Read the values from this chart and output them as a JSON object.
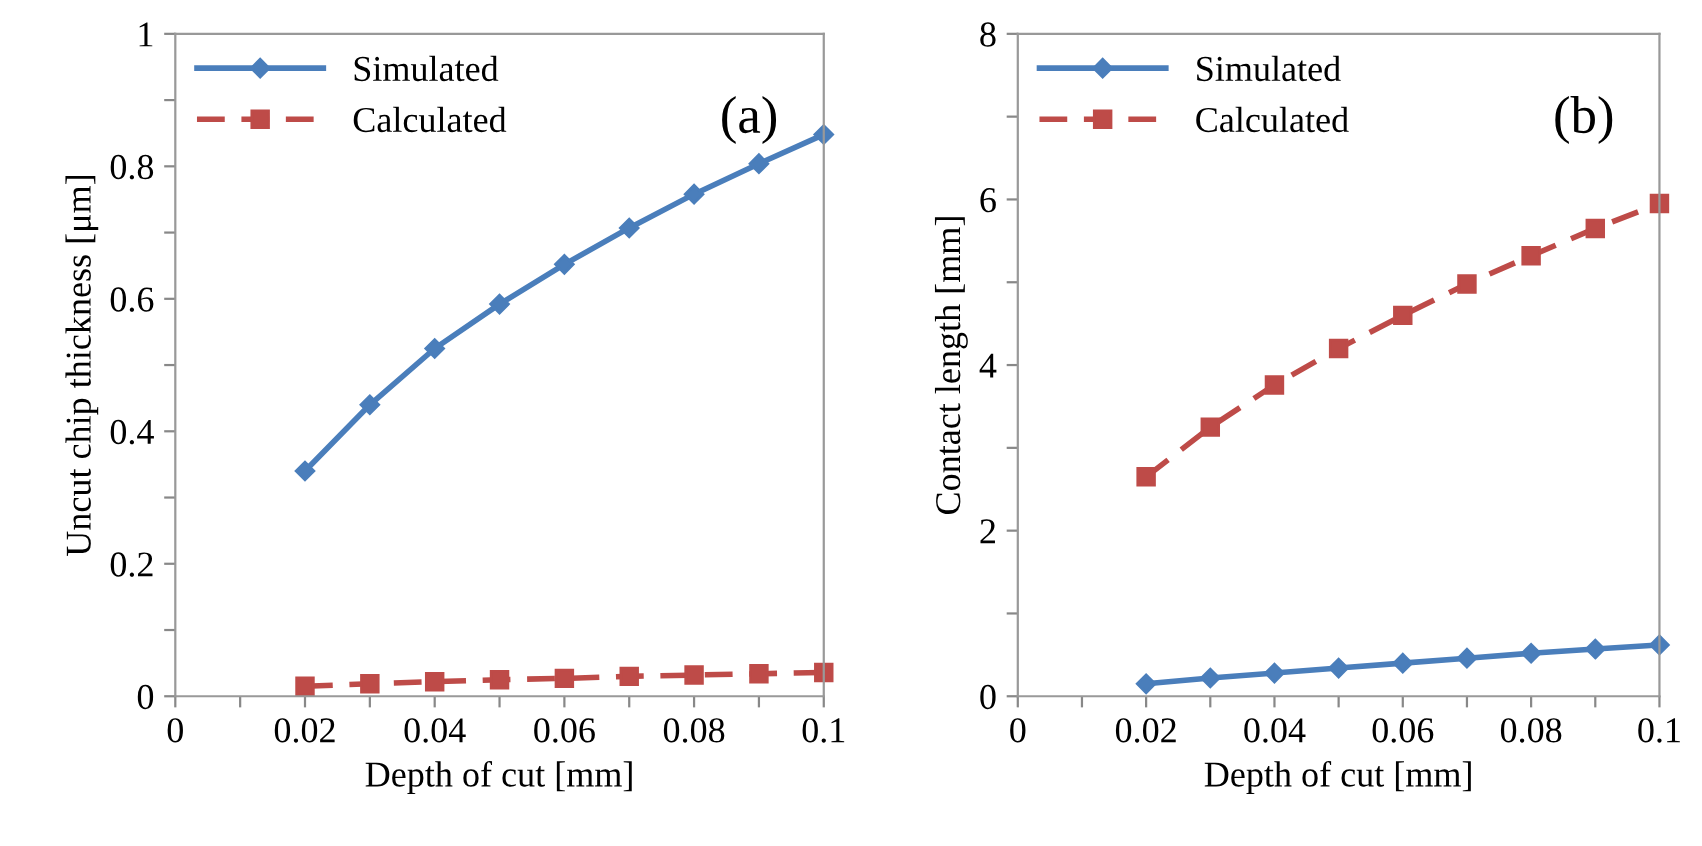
{
  "chart_data": [
    {
      "type": "line",
      "xlabel": "Depth of cut [mm]",
      "ylabel": "Uncut chip thickness [μm]",
      "annotations": [
        "(a)"
      ],
      "x": [
        0.02,
        0.03,
        0.04,
        0.05,
        0.06,
        0.07,
        0.08,
        0.09,
        0.1
      ],
      "series": [
        {
          "name": "Simulated",
          "color": "#4a7ebb",
          "marker": "diamond",
          "line_style": "solid",
          "values": [
            0.34,
            0.44,
            0.525,
            0.592,
            0.652,
            0.707,
            0.758,
            0.804,
            0.848
          ]
        },
        {
          "name": "Calculated",
          "color": "#be4b48",
          "marker": "square",
          "line_style": "dashed",
          "values": [
            0.015,
            0.019,
            0.022,
            0.025,
            0.027,
            0.03,
            0.032,
            0.034,
            0.036
          ]
        }
      ],
      "xlim": [
        0,
        0.1
      ],
      "ylim": [
        0,
        1
      ],
      "xticks": [
        0,
        {
          "value": 0.01,
          "label": null
        },
        0.02,
        {
          "value": 0.03,
          "label": null
        },
        0.04,
        {
          "value": 0.05,
          "label": null
        },
        0.06,
        {
          "value": 0.07,
          "label": null
        },
        0.08,
        {
          "value": 0.09,
          "label": null
        },
        0.1
      ],
      "yticks": [
        0,
        {
          "value": 0.1,
          "label": null
        },
        0.2,
        {
          "value": 0.3,
          "label": null
        },
        0.4,
        {
          "value": 0.5,
          "label": null
        },
        0.6,
        {
          "value": 0.7,
          "label": null
        },
        0.8,
        {
          "value": 0.9,
          "label": null
        },
        1
      ],
      "grid": false,
      "legend": "top left"
    },
    {
      "type": "line",
      "xlabel": "Depth of cut [mm]",
      "ylabel": "Contact length [mm]",
      "annotations": [
        "(b)"
      ],
      "x": [
        0.02,
        0.03,
        0.04,
        0.05,
        0.06,
        0.07,
        0.08,
        0.09,
        0.1
      ],
      "series": [
        {
          "name": "Simulated",
          "color": "#4a7ebb",
          "marker": "diamond",
          "line_style": "solid",
          "values": [
            0.15,
            0.22,
            0.28,
            0.34,
            0.4,
            0.46,
            0.52,
            0.57,
            0.62
          ]
        },
        {
          "name": "Calculated",
          "color": "#be4b48",
          "marker": "square",
          "line_style": "dashed",
          "values": [
            2.65,
            3.25,
            3.76,
            4.2,
            4.6,
            4.98,
            5.32,
            5.65,
            5.95
          ]
        }
      ],
      "xlim": [
        0,
        0.1
      ],
      "ylim": [
        0,
        8
      ],
      "xticks": [
        0,
        {
          "value": 0.01,
          "label": null
        },
        0.02,
        {
          "value": 0.03,
          "label": null
        },
        0.04,
        {
          "value": 0.05,
          "label": null
        },
        0.06,
        {
          "value": 0.07,
          "label": null
        },
        0.08,
        {
          "value": 0.09,
          "label": null
        },
        0.1
      ],
      "yticks": [
        0,
        {
          "value": 1,
          "label": null
        },
        2,
        {
          "value": 3,
          "label": null
        },
        4,
        {
          "value": 5,
          "label": null
        },
        6,
        {
          "value": 7,
          "label": null
        },
        8
      ],
      "grid": false,
      "legend": "top left"
    }
  ]
}
